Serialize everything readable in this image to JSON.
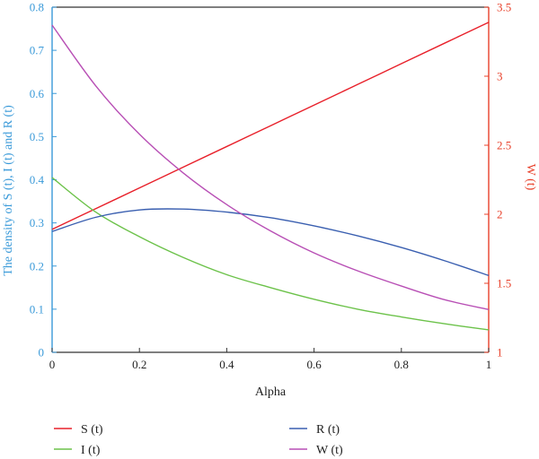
{
  "chart_data": {
    "type": "line",
    "title": "",
    "xlabel": "Alpha",
    "ylabel_left": "The density of S (t), I (t) and R (t)",
    "ylabel_right": "W (t)",
    "xlim": [
      0,
      1
    ],
    "ylim_left": [
      0,
      0.8
    ],
    "ylim_right": [
      1,
      3.5
    ],
    "x_ticks": [
      "0",
      "0.2",
      "0.4",
      "0.6",
      "0.8",
      "1"
    ],
    "y_left_ticks": [
      "0",
      "0.1",
      "0.2",
      "0.3",
      "0.4",
      "0.5",
      "0.6",
      "0.7",
      "0.8"
    ],
    "y_right_ticks": [
      "1",
      "1.5",
      "2",
      "2.5",
      "3",
      "3.5"
    ],
    "grid": false,
    "legend_position": "bottom",
    "colors": {
      "left_axis": "#3a9ad9",
      "right_axis": "#e8402a",
      "frame": "#333333"
    },
    "x": [
      0,
      0.1,
      0.2,
      0.3,
      0.4,
      0.5,
      0.6,
      0.7,
      0.8,
      0.9,
      1.0
    ],
    "series": [
      {
        "name": "S (t)",
        "axis": "left",
        "color": "#e8202a",
        "values": [
          0.285,
          0.333,
          0.381,
          0.429,
          0.477,
          0.525,
          0.573,
          0.621,
          0.669,
          0.717,
          0.765
        ]
      },
      {
        "name": "I (t)",
        "axis": "left",
        "color": "#6cc24a",
        "values": [
          0.405,
          0.325,
          0.268,
          0.22,
          0.18,
          0.15,
          0.123,
          0.1,
          0.082,
          0.066,
          0.052
        ]
      },
      {
        "name": "R (t)",
        "axis": "left",
        "color": "#3a5fb0",
        "values": [
          0.28,
          0.313,
          0.33,
          0.332,
          0.325,
          0.312,
          0.293,
          0.27,
          0.243,
          0.212,
          0.178
        ]
      },
      {
        "name": "W (t)",
        "axis": "right",
        "color": "#b84fb5",
        "values": [
          3.37,
          2.93,
          2.58,
          2.3,
          2.07,
          1.88,
          1.72,
          1.59,
          1.48,
          1.38,
          1.31
        ]
      }
    ],
    "legend": [
      {
        "label": "S (t)",
        "color": "#e8202a"
      },
      {
        "label": "R (t)",
        "color": "#3a5fb0"
      },
      {
        "label": "I (t)",
        "color": "#6cc24a"
      },
      {
        "label": "W (t)",
        "color": "#b84fb5"
      }
    ]
  }
}
